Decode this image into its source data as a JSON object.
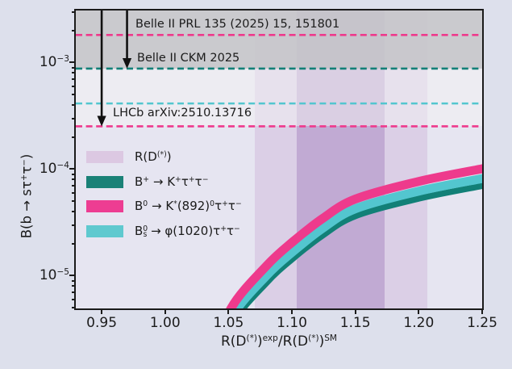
{
  "colors": {
    "figure_bg": "#dde0ec",
    "plot_bg": "#e6e5f1",
    "frame": "#1b1b1b",
    "pink": "#ee3a8c",
    "teal": "#128077",
    "cyan": "#53c6cf",
    "legend_purple": "#dcc8e2",
    "rd_outer_band": "rgba(202,170,214,0.38)",
    "rd_inner_band": "rgba(168,133,191,0.50)",
    "excluded_dark": "rgba(192,192,196,0.78)",
    "excluded_light": "rgba(243,243,243,0.50)"
  },
  "axes": {
    "xlabel": "R(D^{(*)})^{exp}/R(D^{(*)})^{SM}",
    "ylabel": "B(b → sτ^{+}τ^{−})",
    "x_ticks": [
      {
        "value": 0.95,
        "label": "0.95"
      },
      {
        "value": 1.0,
        "label": "1.00"
      },
      {
        "value": 1.05,
        "label": "1.05"
      },
      {
        "value": 1.1,
        "label": "1.10"
      },
      {
        "value": 1.15,
        "label": "1.15"
      },
      {
        "value": 1.2,
        "label": "1.20"
      },
      {
        "value": 1.25,
        "label": "1.25"
      }
    ],
    "y_ticks": [
      {
        "value": 0.001,
        "exponent": "−3"
      },
      {
        "value": 0.0001,
        "exponent": "−4"
      },
      {
        "value": 1e-05,
        "exponent": "−5"
      }
    ]
  },
  "legend": {
    "items": [
      {
        "label": "R(D^{(*)})",
        "color": "#dcc8e2"
      },
      {
        "label": "B^{+} → K^{+}τ^{+}τ^{−}",
        "color": "#1a8177"
      },
      {
        "label": "B^{0} → K^{*}(892)^{0}τ^{+}τ^{−}",
        "color": "#ed3d92"
      },
      {
        "label": "B^{0}_{s} → φ(1020)τ^{+}τ^{−}",
        "color": "#5fc9cf"
      }
    ]
  },
  "chart_data": {
    "type": "line",
    "title": "",
    "xlabel": "R(D(*))^exp / R(D(*))^SM",
    "ylabel": "B(b -> s tau+ tau-)",
    "xlim": [
      0.9296,
      1.25
    ],
    "ylim": [
      4.9e-06,
      0.00305
    ],
    "yscale": "log",
    "grid": false,
    "legend_position": "upper-left-inside",
    "rd_bands": {
      "outer_1sigma2": [
        1.071,
        1.207
      ],
      "inner_1sigma": [
        1.104,
        1.173
      ]
    },
    "excluded_regions": [
      {
        "above": 0.00087,
        "shade": "dark"
      },
      {
        "above": 0.00025,
        "shade": "light"
      }
    ],
    "upper_limit_lines": [
      {
        "label": "Belle II PRL 135 (2025) 15, 151801",
        "value": 0.0018,
        "color": "#ee3a8c"
      },
      {
        "label": "Belle II CKM 2025",
        "value": 0.00087,
        "color": "#128077"
      },
      {
        "label": "",
        "value": 0.00041,
        "color": "#53c6cf"
      },
      {
        "label": "LHCb arXiv:2510.13716",
        "value": 0.00025,
        "color": "#ee3a8c"
      }
    ],
    "limit_arrows": [
      {
        "x": 0.95,
        "to_value": 0.00025
      },
      {
        "x": 0.97,
        "to_value": 0.00087
      }
    ],
    "series": [
      {
        "name": "B0 -> K*(892)0 tau+ tau-",
        "color": "#ee3a8c",
        "line_width": 11,
        "x": [
          1.038,
          1.052,
          1.08,
          1.101,
          1.124,
          1.15,
          1.2,
          1.25,
          1.262
        ],
        "y": [
          1.6e-06,
          4.9e-06,
          1.23e-05,
          2.08e-05,
          3.4e-05,
          5.2e-05,
          7.6e-05,
          0.0001,
          0.000106
        ]
      },
      {
        "name": "B0s -> phi(1020) tau+ tau-",
        "color": "#53c6cf",
        "line_width": 11,
        "x": [
          1.038,
          1.052,
          1.08,
          1.101,
          1.124,
          1.15,
          1.2,
          1.25,
          1.262
        ],
        "y": [
          1.3e-06,
          3.97e-06,
          9.96e-06,
          1.68e-05,
          2.75e-05,
          4.21e-05,
          6.16e-05,
          8.1e-05,
          8.59e-05
        ]
      },
      {
        "name": "B+ -> K+ tau+ tau-",
        "color": "#128077",
        "line_width": 7.5,
        "x": [
          1.038,
          1.052,
          1.08,
          1.101,
          1.124,
          1.15,
          1.2,
          1.25,
          1.262
        ],
        "y": [
          1.1e-06,
          3.38e-06,
          8.49e-06,
          1.44e-05,
          2.35e-05,
          3.59e-05,
          5.24e-05,
          6.9e-05,
          7.31e-05
        ]
      }
    ]
  }
}
